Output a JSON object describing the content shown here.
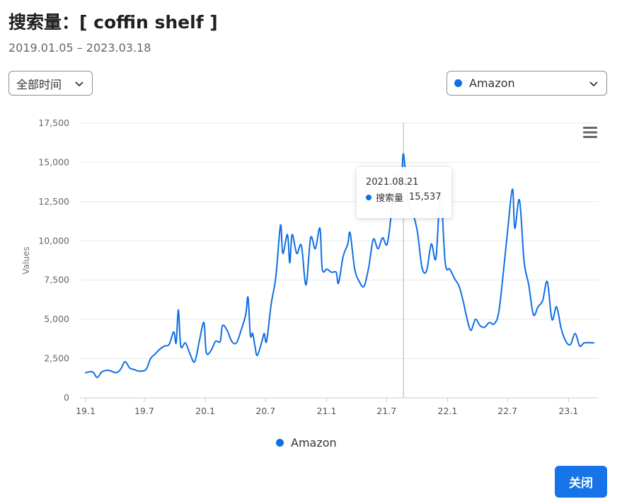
{
  "header": {
    "title": "搜索量：[ coffin shelf ]",
    "date_range": "2019.01.05 – 2023.03.18"
  },
  "filters": {
    "time_select_value": "全部时间",
    "store_select_value": "Amazon",
    "store_color": "#0f6fe3"
  },
  "chart_data": {
    "type": "line",
    "y_axis_label": "Values",
    "ylim": [
      0,
      17500
    ],
    "y_ticks": [
      "0",
      "2,500",
      "5,000",
      "7,500",
      "10,000",
      "12,500",
      "15,000",
      "17,500"
    ],
    "x_ticks": [
      "19.1",
      "19.7",
      "20.1",
      "20.7",
      "21.1",
      "21.7",
      "22.1",
      "22.7",
      "23.1"
    ],
    "grid": true,
    "legend_position": "bottom-center",
    "series": [
      {
        "name": "Amazon",
        "color": "#0f6fe3",
        "points": [
          [
            "2019-01-05",
            1600
          ],
          [
            "2019-01-26",
            1650
          ],
          [
            "2019-02-09",
            1300
          ],
          [
            "2019-02-23",
            1650
          ],
          [
            "2019-03-16",
            1750
          ],
          [
            "2019-04-06",
            1600
          ],
          [
            "2019-04-20",
            1800
          ],
          [
            "2019-05-04",
            2300
          ],
          [
            "2019-05-18",
            1900
          ],
          [
            "2019-06-01",
            1800
          ],
          [
            "2019-06-15",
            1700
          ],
          [
            "2019-07-06",
            1800
          ],
          [
            "2019-07-20",
            2500
          ],
          [
            "2019-08-03",
            2800
          ],
          [
            "2019-08-17",
            3100
          ],
          [
            "2019-08-31",
            3300
          ],
          [
            "2019-09-14",
            3400
          ],
          [
            "2019-09-28",
            4200
          ],
          [
            "2019-10-05",
            3500
          ],
          [
            "2019-10-12",
            5600
          ],
          [
            "2019-10-19",
            3300
          ],
          [
            "2019-11-02",
            3500
          ],
          [
            "2019-11-16",
            2800
          ],
          [
            "2019-11-30",
            2300
          ],
          [
            "2019-12-14",
            3600
          ],
          [
            "2019-12-28",
            4800
          ],
          [
            "2020-01-04",
            2900
          ],
          [
            "2020-01-18",
            3000
          ],
          [
            "2020-02-01",
            3600
          ],
          [
            "2020-02-15",
            3600
          ],
          [
            "2020-02-22",
            4600
          ],
          [
            "2020-03-07",
            4300
          ],
          [
            "2020-03-21",
            3600
          ],
          [
            "2020-04-04",
            3500
          ],
          [
            "2020-04-18",
            4300
          ],
          [
            "2020-05-02",
            5300
          ],
          [
            "2020-05-09",
            6400
          ],
          [
            "2020-05-16",
            4000
          ],
          [
            "2020-05-23",
            4100
          ],
          [
            "2020-05-30",
            3300
          ],
          [
            "2020-06-06",
            2700
          ],
          [
            "2020-06-20",
            3600
          ],
          [
            "2020-06-27",
            4100
          ],
          [
            "2020-07-04",
            3600
          ],
          [
            "2020-07-18",
            6000
          ],
          [
            "2020-08-01",
            7700
          ],
          [
            "2020-08-15",
            11000
          ],
          [
            "2020-08-22",
            9200
          ],
          [
            "2020-09-05",
            10400
          ],
          [
            "2020-09-12",
            8600
          ],
          [
            "2020-09-19",
            10400
          ],
          [
            "2020-10-03",
            9200
          ],
          [
            "2020-10-17",
            9700
          ],
          [
            "2020-10-31",
            7200
          ],
          [
            "2020-11-14",
            10200
          ],
          [
            "2020-11-28",
            9500
          ],
          [
            "2020-12-12",
            10800
          ],
          [
            "2020-12-19",
            8200
          ],
          [
            "2021-01-02",
            8200
          ],
          [
            "2021-01-16",
            8000
          ],
          [
            "2021-01-30",
            8000
          ],
          [
            "2021-02-06",
            7300
          ],
          [
            "2021-02-20",
            9000
          ],
          [
            "2021-03-06",
            9800
          ],
          [
            "2021-03-13",
            10500
          ],
          [
            "2021-03-27",
            8200
          ],
          [
            "2021-04-10",
            7400
          ],
          [
            "2021-04-24",
            7100
          ],
          [
            "2021-05-08",
            8300
          ],
          [
            "2021-05-22",
            10100
          ],
          [
            "2021-06-05",
            9500
          ],
          [
            "2021-06-19",
            10200
          ],
          [
            "2021-07-03",
            9800
          ],
          [
            "2021-07-17",
            12000
          ],
          [
            "2021-07-31",
            14200
          ],
          [
            "2021-08-14",
            13500
          ],
          [
            "2021-08-21",
            15537
          ],
          [
            "2021-09-04",
            12600
          ],
          [
            "2021-09-18",
            11800
          ],
          [
            "2021-10-02",
            10600
          ],
          [
            "2021-10-16",
            8300
          ],
          [
            "2021-10-30",
            8100
          ],
          [
            "2021-11-13",
            9800
          ],
          [
            "2021-11-27",
            8900
          ],
          [
            "2021-12-11",
            13000
          ],
          [
            "2021-12-25",
            8600
          ],
          [
            "2022-01-08",
            8200
          ],
          [
            "2022-01-22",
            7600
          ],
          [
            "2022-02-05",
            7100
          ],
          [
            "2022-02-19",
            6000
          ],
          [
            "2022-02-26",
            5300
          ],
          [
            "2022-03-12",
            4300
          ],
          [
            "2022-03-26",
            5000
          ],
          [
            "2022-04-09",
            4600
          ],
          [
            "2022-04-23",
            4500
          ],
          [
            "2022-05-07",
            4800
          ],
          [
            "2022-05-21",
            4700
          ],
          [
            "2022-06-04",
            5400
          ],
          [
            "2022-06-18",
            7900
          ],
          [
            "2022-07-02",
            10800
          ],
          [
            "2022-07-16",
            13300
          ],
          [
            "2022-07-23",
            10800
          ],
          [
            "2022-08-06",
            12600
          ],
          [
            "2022-08-20",
            8700
          ],
          [
            "2022-09-03",
            7200
          ],
          [
            "2022-09-17",
            5300
          ],
          [
            "2022-10-01",
            5800
          ],
          [
            "2022-10-15",
            6200
          ],
          [
            "2022-10-29",
            7400
          ],
          [
            "2022-11-12",
            5000
          ],
          [
            "2022-11-26",
            5800
          ],
          [
            "2022-12-10",
            4400
          ],
          [
            "2022-12-24",
            3600
          ],
          [
            "2023-01-07",
            3400
          ],
          [
            "2023-01-21",
            4100
          ],
          [
            "2023-02-04",
            3300
          ],
          [
            "2023-02-18",
            3500
          ],
          [
            "2023-03-18",
            3500
          ]
        ]
      }
    ],
    "tooltip": {
      "date": "2021.08.21",
      "label": "搜索量",
      "value": "15,537"
    }
  },
  "legend": {
    "label": "Amazon"
  },
  "footer": {
    "close_label": "关闭"
  }
}
